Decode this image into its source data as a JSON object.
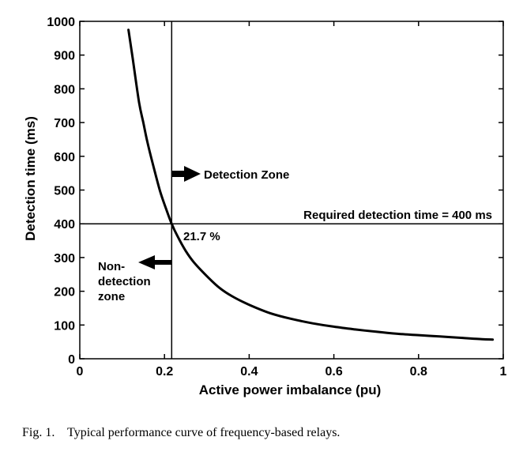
{
  "chart_data": {
    "type": "line",
    "xlabel": "Active power imbalance (pu)",
    "ylabel": "Detection time (ms)",
    "xlim": [
      0,
      1
    ],
    "ylim": [
      0,
      1000
    ],
    "xticks": [
      0,
      0.2,
      0.4,
      0.6,
      0.8,
      1
    ],
    "xtick_labels": [
      "0",
      "0.2",
      "0.4",
      "0.6",
      "0.8",
      "1"
    ],
    "yticks": [
      0,
      100,
      200,
      300,
      400,
      500,
      600,
      700,
      800,
      900,
      1000
    ],
    "ytick_labels": [
      "0",
      "100",
      "200",
      "300",
      "400",
      "500",
      "600",
      "700",
      "800",
      "900",
      "1000"
    ],
    "grid": false,
    "series": [
      {
        "x": [
          0.115,
          0.125,
          0.14,
          0.15,
          0.16,
          0.175,
          0.19,
          0.205,
          0.217,
          0.23,
          0.25,
          0.27,
          0.3,
          0.33,
          0.36,
          0.4,
          0.45,
          0.5,
          0.55,
          0.6,
          0.65,
          0.7,
          0.75,
          0.8,
          0.85,
          0.9,
          0.95,
          0.975
        ],
        "y": [
          975,
          890,
          760,
          700,
          640,
          565,
          495,
          440,
          400,
          365,
          320,
          285,
          245,
          210,
          185,
          160,
          135,
          118,
          105,
          95,
          87,
          80,
          74,
          70,
          66,
          62,
          58,
          57
        ]
      }
    ],
    "reference_lines": {
      "horizontal_y": 400,
      "vertical_x": 0.217
    },
    "annotations": {
      "detection_zone": "Detection Zone",
      "required_time": "Required detection time = 400 ms",
      "intersection": "21.7 %",
      "non_detection_lines": [
        "Non-",
        "detection",
        "zone"
      ]
    }
  },
  "caption": "Fig. 1.    Typical performance curve of frequency-based relays."
}
